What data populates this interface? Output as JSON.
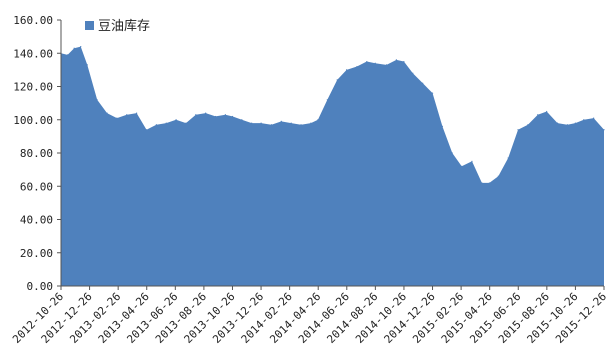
{
  "chart_data": {
    "type": "area",
    "title": "",
    "xlabel": "",
    "ylabel": "",
    "ylim": [
      0,
      160
    ],
    "yticks": [
      "0.00",
      "20.00",
      "40.00",
      "60.00",
      "80.00",
      "100.00",
      "120.00",
      "140.00",
      "160.00"
    ],
    "xticks": [
      "2012-10-26",
      "2012-12-26",
      "2013-02-26",
      "2013-04-26",
      "2013-06-26",
      "2013-08-26",
      "2013-10-26",
      "2013-12-26",
      "2014-02-26",
      "2014-04-26",
      "2014-06-26",
      "2014-08-26",
      "2014-10-26",
      "2014-12-26",
      "2015-02-26",
      "2015-04-26",
      "2015-06-26",
      "2015-08-26",
      "2015-10-26",
      "2015-12-26"
    ],
    "legend": {
      "position": "top-left"
    },
    "grid": false,
    "series": [
      {
        "name": "豆油库存",
        "color": "#4f81bd",
        "x": [
          "2012-10-26",
          "2012-11-09",
          "2012-11-23",
          "2012-12-07",
          "2012-12-21",
          "2013-01-11",
          "2013-02-01",
          "2013-02-22",
          "2013-03-15",
          "2013-04-05",
          "2013-04-26",
          "2013-05-17",
          "2013-06-07",
          "2013-06-28",
          "2013-07-19",
          "2013-08-09",
          "2013-08-30",
          "2013-09-20",
          "2013-10-11",
          "2013-10-26",
          "2013-11-15",
          "2013-12-06",
          "2013-12-26",
          "2014-01-17",
          "2014-02-07",
          "2014-02-28",
          "2014-03-21",
          "2014-04-11",
          "2014-04-26",
          "2014-05-16",
          "2014-06-06",
          "2014-06-26",
          "2014-07-18",
          "2014-08-08",
          "2014-08-26",
          "2014-09-19",
          "2014-10-10",
          "2014-10-26",
          "2014-11-14",
          "2014-12-05",
          "2014-12-26",
          "2015-01-16",
          "2015-02-06",
          "2015-02-26",
          "2015-03-20",
          "2015-04-10",
          "2015-04-26",
          "2015-05-15",
          "2015-06-05",
          "2015-06-26",
          "2015-07-17",
          "2015-08-07",
          "2015-08-26",
          "2015-09-18",
          "2015-10-09",
          "2015-10-26",
          "2015-11-13",
          "2015-12-04",
          "2015-12-26"
        ],
        "values": [
          140,
          139,
          143,
          144,
          133,
          112,
          104,
          101,
          103,
          104,
          94,
          97,
          98,
          100,
          98,
          103,
          104,
          102,
          103,
          102,
          100,
          98,
          98,
          97,
          99,
          98,
          97,
          98,
          100,
          112,
          124,
          130,
          132,
          135,
          134,
          133,
          136,
          135,
          128,
          122,
          116,
          96,
          80,
          72,
          75,
          62,
          62,
          66,
          77,
          94,
          97,
          103,
          105,
          98,
          97,
          98,
          100,
          101,
          94
        ]
      }
    ]
  }
}
